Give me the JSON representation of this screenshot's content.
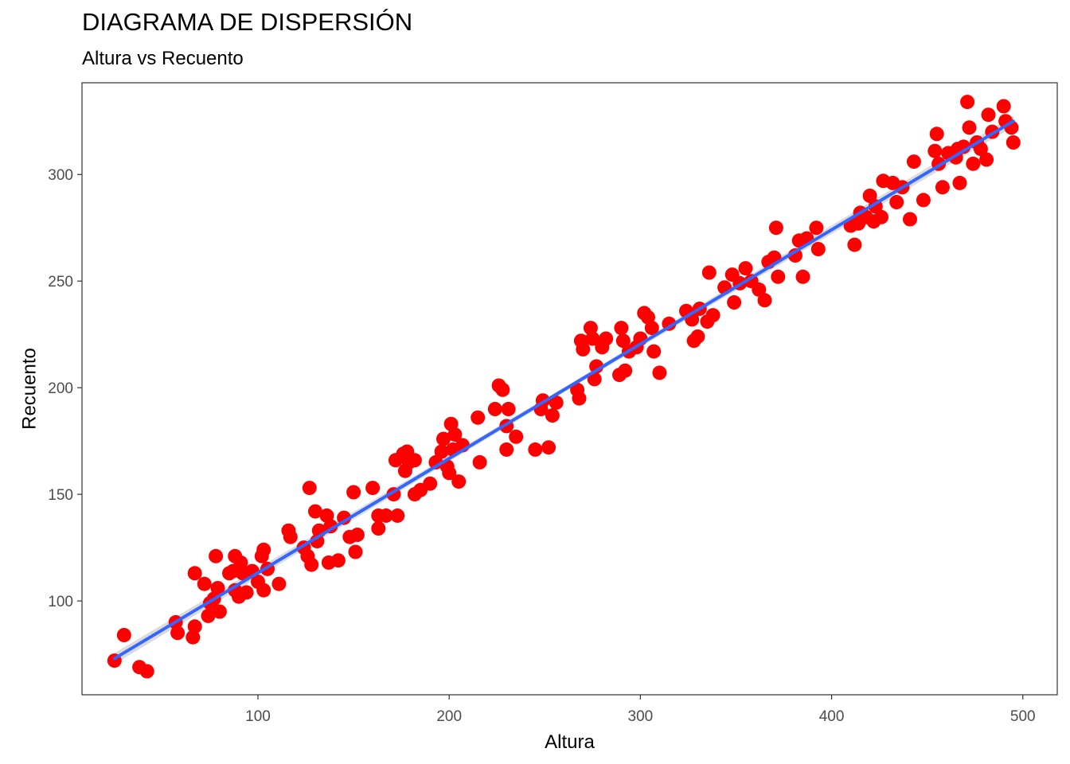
{
  "chart_data": {
    "type": "scatter",
    "title": "DIAGRAMA DE DISPERSIÓN",
    "subtitle": "Altura vs Recuento",
    "xlabel": "Altura",
    "ylabel": "Recuento",
    "xlim": [
      8,
      518
    ],
    "ylim": [
      56,
      343
    ],
    "x_ticks": [
      100,
      200,
      300,
      400,
      500
    ],
    "y_ticks": [
      100,
      150,
      200,
      250,
      300
    ],
    "grid": false,
    "point_color": "#ff0000",
    "line_color": "#3366ff",
    "band_color": "#bdbdbd",
    "trend_line": {
      "type": "linear",
      "x": [
        25,
        495
      ],
      "y": [
        73,
        325
      ]
    },
    "points": [
      [
        25,
        72
      ],
      [
        30,
        84
      ],
      [
        38,
        69
      ],
      [
        42,
        67
      ],
      [
        57,
        90
      ],
      [
        58,
        85
      ],
      [
        66,
        83
      ],
      [
        67,
        88
      ],
      [
        67,
        113
      ],
      [
        72,
        108
      ],
      [
        74,
        93
      ],
      [
        75,
        99
      ],
      [
        77,
        101
      ],
      [
        78,
        121
      ],
      [
        79,
        106
      ],
      [
        80,
        95
      ],
      [
        85,
        113
      ],
      [
        87,
        114
      ],
      [
        88,
        105
      ],
      [
        88,
        121
      ],
      [
        90,
        102
      ],
      [
        91,
        118
      ],
      [
        92,
        113
      ],
      [
        94,
        104
      ],
      [
        97,
        114
      ],
      [
        100,
        109
      ],
      [
        102,
        121
      ],
      [
        103,
        124
      ],
      [
        103,
        105
      ],
      [
        105,
        115
      ],
      [
        111,
        108
      ],
      [
        116,
        133
      ],
      [
        117,
        130
      ],
      [
        124,
        125
      ],
      [
        126,
        121
      ],
      [
        127,
        153
      ],
      [
        128,
        117
      ],
      [
        130,
        142
      ],
      [
        131,
        128
      ],
      [
        132,
        133
      ],
      [
        136,
        140
      ],
      [
        137,
        118
      ],
      [
        138,
        135
      ],
      [
        142,
        119
      ],
      [
        145,
        139
      ],
      [
        148,
        130
      ],
      [
        150,
        151
      ],
      [
        151,
        123
      ],
      [
        152,
        131
      ],
      [
        160,
        153
      ],
      [
        163,
        140
      ],
      [
        163,
        134
      ],
      [
        167,
        140
      ],
      [
        171,
        150
      ],
      [
        172,
        166
      ],
      [
        173,
        140
      ],
      [
        176,
        169
      ],
      [
        177,
        161
      ],
      [
        178,
        170
      ],
      [
        179,
        165
      ],
      [
        182,
        150
      ],
      [
        182,
        166
      ],
      [
        185,
        152
      ],
      [
        190,
        155
      ],
      [
        193,
        165
      ],
      [
        196,
        170
      ],
      [
        197,
        176
      ],
      [
        199,
        163
      ],
      [
        200,
        160
      ],
      [
        201,
        183
      ],
      [
        202,
        171
      ],
      [
        203,
        178
      ],
      [
        205,
        156
      ],
      [
        207,
        173
      ],
      [
        215,
        186
      ],
      [
        216,
        165
      ],
      [
        224,
        190
      ],
      [
        226,
        201
      ],
      [
        228,
        199
      ],
      [
        230,
        171
      ],
      [
        230,
        182
      ],
      [
        231,
        190
      ],
      [
        235,
        177
      ],
      [
        245,
        171
      ],
      [
        248,
        190
      ],
      [
        249,
        194
      ],
      [
        252,
        172
      ],
      [
        254,
        187
      ],
      [
        256,
        193
      ],
      [
        267,
        199
      ],
      [
        268,
        195
      ],
      [
        269,
        222
      ],
      [
        270,
        218
      ],
      [
        274,
        228
      ],
      [
        275,
        223
      ],
      [
        276,
        204
      ],
      [
        277,
        210
      ],
      [
        280,
        219
      ],
      [
        282,
        223
      ],
      [
        289,
        206
      ],
      [
        290,
        228
      ],
      [
        291,
        222
      ],
      [
        292,
        208
      ],
      [
        294,
        217
      ],
      [
        298,
        219
      ],
      [
        300,
        223
      ],
      [
        302,
        235
      ],
      [
        304,
        233
      ],
      [
        306,
        228
      ],
      [
        307,
        217
      ],
      [
        310,
        207
      ],
      [
        315,
        230
      ],
      [
        324,
        236
      ],
      [
        327,
        232
      ],
      [
        328,
        222
      ],
      [
        330,
        224
      ],
      [
        331,
        237
      ],
      [
        335,
        231
      ],
      [
        336,
        254
      ],
      [
        338,
        234
      ],
      [
        344,
        247
      ],
      [
        348,
        253
      ],
      [
        349,
        240
      ],
      [
        352,
        249
      ],
      [
        355,
        256
      ],
      [
        358,
        250
      ],
      [
        362,
        246
      ],
      [
        365,
        241
      ],
      [
        367,
        259
      ],
      [
        370,
        261
      ],
      [
        371,
        275
      ],
      [
        372,
        252
      ],
      [
        381,
        262
      ],
      [
        383,
        269
      ],
      [
        385,
        252
      ],
      [
        387,
        270
      ],
      [
        392,
        275
      ],
      [
        393,
        265
      ],
      [
        410,
        276
      ],
      [
        412,
        267
      ],
      [
        414,
        277
      ],
      [
        415,
        282
      ],
      [
        418,
        280
      ],
      [
        420,
        290
      ],
      [
        422,
        278
      ],
      [
        423,
        285
      ],
      [
        426,
        280
      ],
      [
        427,
        297
      ],
      [
        432,
        296
      ],
      [
        434,
        287
      ],
      [
        437,
        294
      ],
      [
        441,
        279
      ],
      [
        443,
        306
      ],
      [
        448,
        288
      ],
      [
        454,
        311
      ],
      [
        455,
        319
      ],
      [
        456,
        305
      ],
      [
        458,
        294
      ],
      [
        461,
        310
      ],
      [
        465,
        308
      ],
      [
        466,
        312
      ],
      [
        467,
        296
      ],
      [
        469,
        313
      ],
      [
        471,
        334
      ],
      [
        472,
        322
      ],
      [
        474,
        305
      ],
      [
        476,
        315
      ],
      [
        478,
        312
      ],
      [
        481,
        307
      ],
      [
        482,
        328
      ],
      [
        484,
        320
      ],
      [
        490,
        332
      ],
      [
        491,
        325
      ],
      [
        494,
        322
      ],
      [
        495,
        315
      ]
    ]
  }
}
